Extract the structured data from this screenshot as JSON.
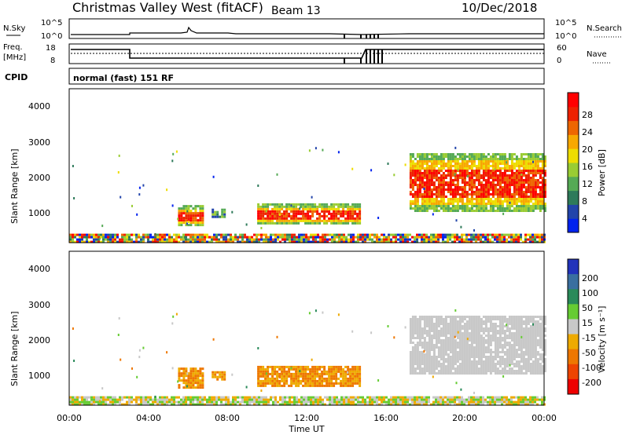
{
  "header": {
    "station": "Christmas Valley West (fitACF)",
    "beam": "Beam 13",
    "date": "10/Dec/2018"
  },
  "noise_panel": {
    "left_label": "N.Sky",
    "right_label": "N.Search",
    "ticks": [
      "10^5",
      "10^0"
    ]
  },
  "freq_panel": {
    "left_label_1": "Freq.",
    "left_label_2": "[MHz]",
    "left_ticks": [
      "18",
      "8"
    ],
    "right_label": "Nave",
    "right_ticks": [
      "60",
      "0"
    ]
  },
  "cpid": {
    "label": "CPID",
    "text": "normal (fast) 151 RF"
  },
  "colors": {
    "power": [
      "#0022ee",
      "#2244aa",
      "#2e7a5a",
      "#55aa55",
      "#99cc33",
      "#eedd00",
      "#f7a800",
      "#ee6600",
      "#ee2200",
      "#ff0000"
    ],
    "velocity": [
      "#2233bb",
      "#3a6fa0",
      "#2a8a5a",
      "#66cc33",
      "#c8c8c8",
      "#eeaa00",
      "#ee7700",
      "#ee4400",
      "#ee0000"
    ]
  },
  "chart_data": [
    {
      "type": "heatmap",
      "name": "power",
      "ylabel": "Slant Range [km]",
      "yticks": [
        "4000",
        "3000",
        "2000",
        "1000"
      ],
      "ylim": [
        200,
        4500
      ],
      "xticks": [
        "00:00",
        "04:00",
        "08:00",
        "12:00",
        "16:00",
        "20:00",
        "00:00"
      ],
      "xlim_hours": [
        0,
        24
      ],
      "colorbar_label": "Power [dB]",
      "colorbar_ticks": [
        "28",
        "24",
        "20",
        "16",
        "12",
        "8",
        "4"
      ],
      "regions": [
        {
          "t": [
            5.5,
            6.8
          ],
          "r": [
            700,
            1250
          ],
          "level": "high"
        },
        {
          "t": [
            7.2,
            7.9
          ],
          "r": [
            900,
            1150
          ],
          "level": "mid"
        },
        {
          "t": [
            9.5,
            14.7
          ],
          "r": [
            750,
            1300
          ],
          "level": "high"
        },
        {
          "t": [
            17.2,
            24.0
          ],
          "r": [
            1100,
            2700
          ],
          "level": "high"
        },
        {
          "t": [
            0,
            24
          ],
          "r": [
            200,
            450
          ],
          "level": "mixed"
        }
      ]
    },
    {
      "type": "heatmap",
      "name": "velocity",
      "ylabel": "Slant Range [km]",
      "yticks": [
        "4000",
        "3000",
        "2000",
        "1000"
      ],
      "ylim": [
        200,
        4500
      ],
      "xticks": [
        "00:00",
        "04:00",
        "08:00",
        "12:00",
        "16:00",
        "20:00",
        "00:00"
      ],
      "xlabel": "Time UT",
      "colorbar_label": "Velocity [m s⁻¹]",
      "colorbar_ticks": [
        "200",
        "100",
        "50",
        "15",
        "-15",
        "-50",
        "-100",
        "-200"
      ]
    }
  ]
}
